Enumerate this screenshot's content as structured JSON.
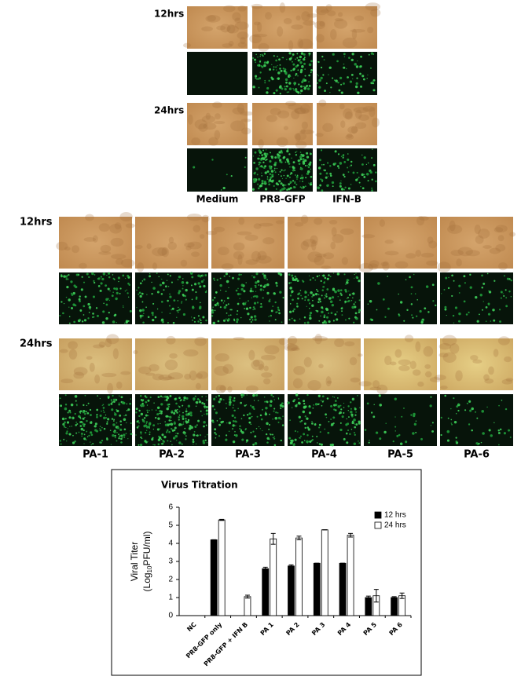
{
  "top_panel": {
    "time_labels": [
      "12hrs",
      "24hrs"
    ],
    "column_labels": [
      "Medium",
      "PR8-GFP",
      "IFN-B"
    ]
  },
  "pa_panel": {
    "time_labels": [
      "12hrs",
      "24hrs"
    ],
    "column_labels": [
      "PA-1",
      "PA-2",
      "PA-3",
      "PA-4",
      "PA-5",
      "PA-6"
    ]
  },
  "chart_data": {
    "type": "bar",
    "title": "Virus Titration",
    "ylabel": {
      "line1": "Viral Titer",
      "pre": "(Log",
      "sub": "10",
      "post": "PFU/ml)"
    },
    "categories": [
      "NC",
      "PR8-GFP only",
      "PR8-GFP + IFN B",
      "PA 1",
      "PA 2",
      "PA 3",
      "PA 4",
      "PA 5",
      "PA 6"
    ],
    "series": [
      {
        "name": "12 hrs",
        "color": "#000000",
        "values": [
          0,
          4.2,
          0,
          2.6,
          2.75,
          2.9,
          2.9,
          1.0,
          1.0
        ],
        "error": [
          0,
          0,
          0,
          0.08,
          0.06,
          0,
          0,
          0.08,
          0.05
        ]
      },
      {
        "name": "24 hrs",
        "color": "#ffffff",
        "values": [
          0,
          5.3,
          1.05,
          4.25,
          4.3,
          4.75,
          4.45,
          1.1,
          1.1
        ],
        "error": [
          0,
          0.03,
          0.08,
          0.3,
          0.1,
          0,
          0.1,
          0.35,
          0.15
        ]
      }
    ],
    "ylim": [
      0,
      6
    ],
    "yticks": [
      0,
      1,
      2,
      3,
      4,
      5,
      6
    ],
    "grid": false,
    "legend": "upper right"
  }
}
